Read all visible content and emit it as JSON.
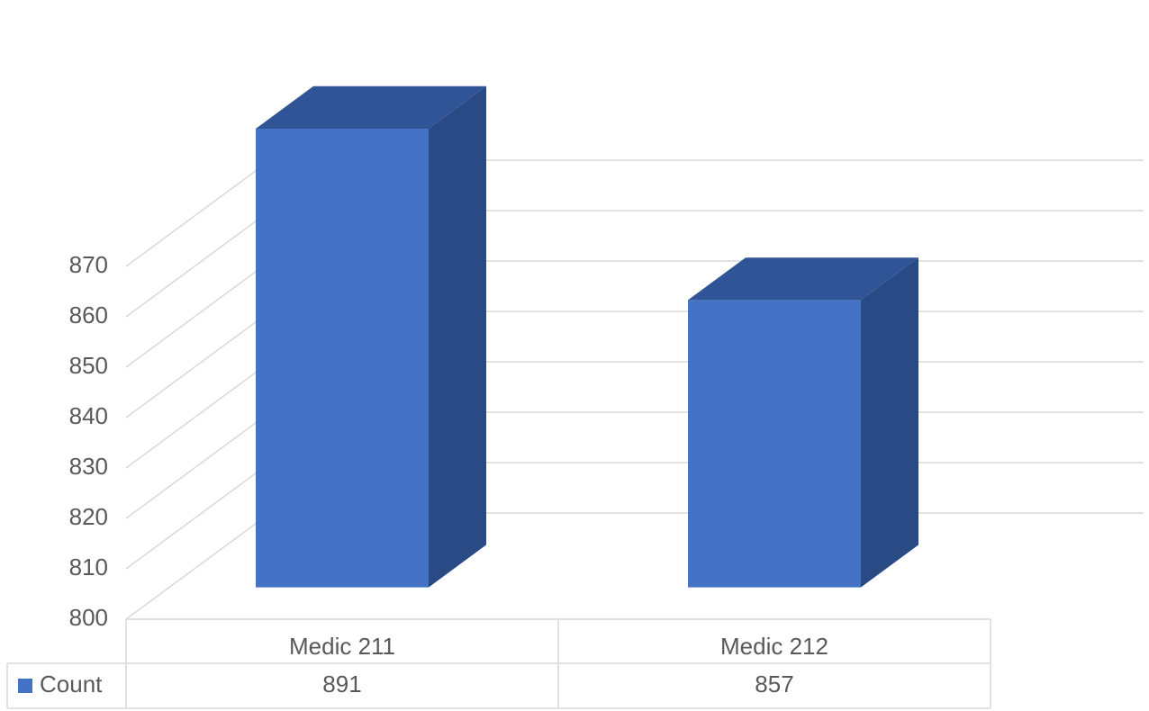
{
  "chart_data": {
    "type": "bar3d",
    "categories": [
      "Medic 211",
      "Medic 212"
    ],
    "series": [
      {
        "name": "Count",
        "color": "#4472c4",
        "values": [
          891,
          857
        ]
      }
    ],
    "ylim": [
      800,
      900
    ],
    "yticks": [
      800,
      810,
      820,
      830,
      840,
      850,
      860,
      870
    ],
    "grid": true,
    "data_table": true
  }
}
